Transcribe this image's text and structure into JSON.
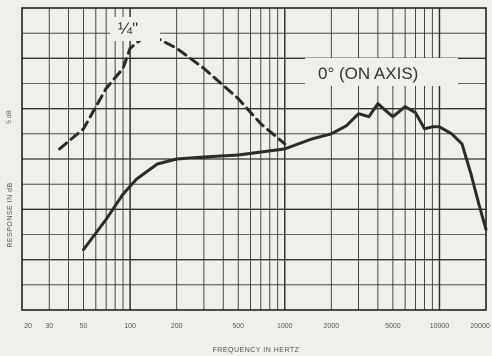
{
  "chart_data": {
    "type": "line",
    "title": "",
    "xlabel": "FREQUENCY IN HERTZ",
    "ylabel": "RESPONSE IN dB",
    "y_scale_label": "5 dB",
    "x_scale": "log",
    "xlim": [
      20,
      20000
    ],
    "ylim": [
      -15,
      15
    ],
    "x_ticks": [
      "20",
      "30",
      "50",
      "100",
      "200",
      "500",
      "1000",
      "2000",
      "5000",
      "10000",
      "20000"
    ],
    "grid": true,
    "series": [
      {
        "name": "0° (ON AXIS)",
        "style": "solid",
        "x": [
          50,
          70,
          90,
          110,
          150,
          200,
          300,
          500,
          800,
          1000,
          1500,
          2000,
          2500,
          3000,
          3500,
          4000,
          4500,
          5000,
          6000,
          7000,
          8000,
          9000,
          10000,
          12000,
          14000,
          16000,
          18000,
          20000
        ],
        "y": [
          -9,
          -6,
          -3.5,
          -2,
          -0.5,
          0,
          0.2,
          0.4,
          0.8,
          1,
          2,
          2.5,
          3.3,
          4.5,
          4.2,
          5.5,
          4.8,
          4.2,
          5.2,
          4.6,
          3,
          3.2,
          3.2,
          2.5,
          1.5,
          -1.5,
          -4.5,
          -7
        ]
      },
      {
        "name": "1/4\"",
        "display_name": "¼\"",
        "style": "dashed",
        "x": [
          35,
          50,
          70,
          90,
          100,
          120,
          150,
          200,
          300,
          500,
          700,
          1000
        ],
        "y": [
          1,
          3,
          7,
          9,
          11,
          12,
          12,
          11,
          9,
          6,
          3.5,
          1.5
        ]
      }
    ]
  }
}
